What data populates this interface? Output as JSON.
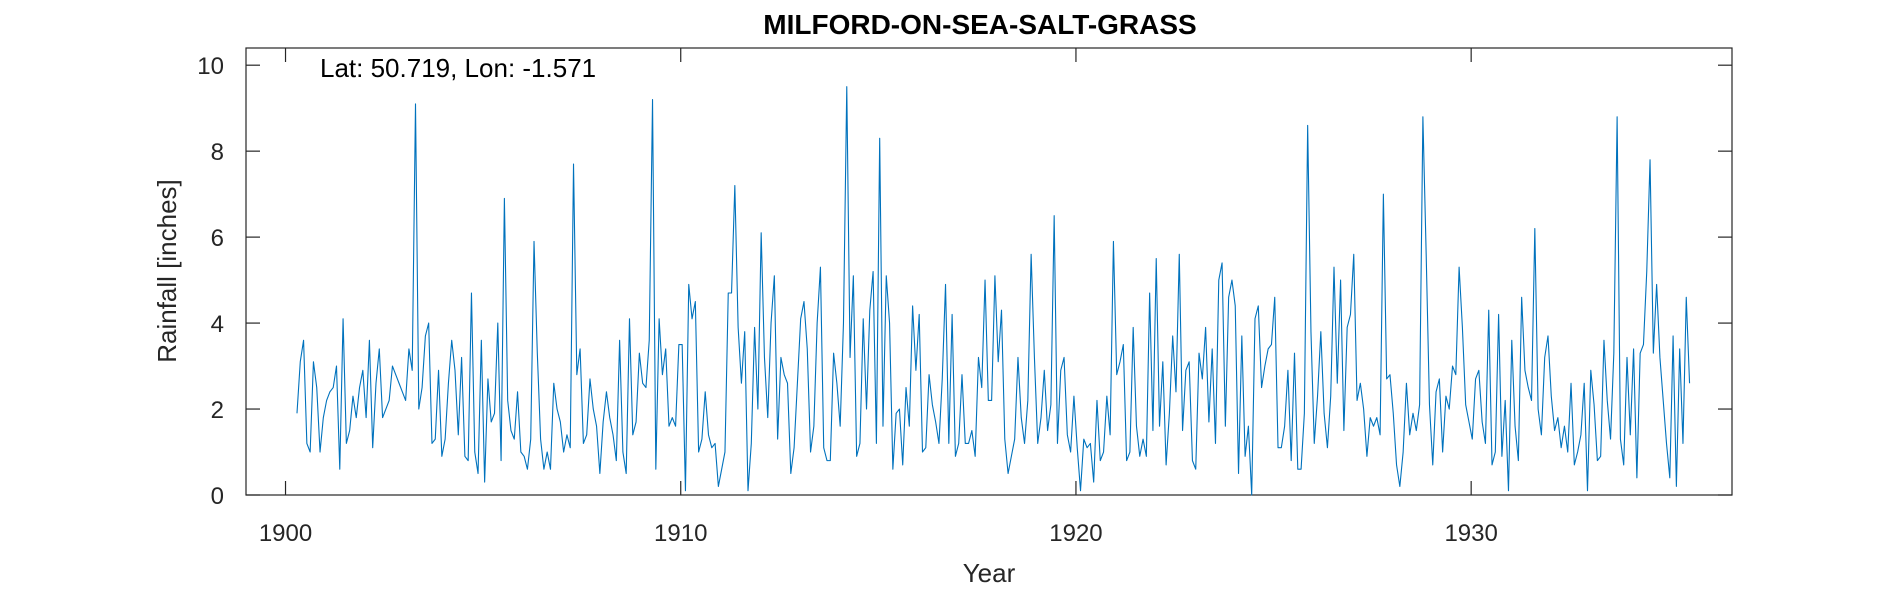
{
  "chart_data": {
    "type": "line",
    "title": "MILFORD-ON-SEA-SALT-GRASS",
    "annotation": "Lat: 50.719, Lon: -1.571",
    "xlabel": "Year",
    "ylabel": "Rainfall [inches]",
    "xlim": [
      1899,
      1936.6
    ],
    "ylim": [
      0,
      10.4
    ],
    "xticks": [
      1900,
      1910,
      1920,
      1930
    ],
    "yticks": [
      0,
      2,
      4,
      6,
      8,
      10
    ],
    "x_start": 1900.29,
    "x_step": 0.0833,
    "line_color": "#0072BD",
    "grid": false,
    "series": [
      {
        "values": [
          1.9,
          3.1,
          3.6,
          1.2,
          1.0,
          3.1,
          2.5,
          1.0,
          1.8,
          2.2,
          2.4,
          2.5,
          3.0,
          0.6,
          4.1,
          1.2,
          1.5,
          2.3,
          1.8,
          2.5,
          2.9,
          1.8,
          3.6,
          1.1,
          2.6,
          3.4,
          1.8,
          2.0,
          2.2,
          3.0,
          2.8,
          2.6,
          2.4,
          2.2,
          3.4,
          2.9,
          9.1,
          2.0,
          2.5,
          3.7,
          4.0,
          1.2,
          1.3,
          2.9,
          0.9,
          1.3,
          2.6,
          3.6,
          2.9,
          1.4,
          3.2,
          0.9,
          0.8,
          4.7,
          1.0,
          0.5,
          3.6,
          0.3,
          2.7,
          1.7,
          1.9,
          4.0,
          0.8,
          6.9,
          2.2,
          1.5,
          1.3,
          2.4,
          1.0,
          0.9,
          0.6,
          1.3,
          5.9,
          3.3,
          1.3,
          0.6,
          1.0,
          0.6,
          2.6,
          2.0,
          1.7,
          1.0,
          1.4,
          1.1,
          7.7,
          2.8,
          3.4,
          1.2,
          1.4,
          2.7,
          2.0,
          1.6,
          0.5,
          1.7,
          2.4,
          1.8,
          1.4,
          0.8,
          3.6,
          1.0,
          0.5,
          4.1,
          1.4,
          1.7,
          3.3,
          2.6,
          2.5,
          3.6,
          9.2,
          0.6,
          4.1,
          2.8,
          3.4,
          1.6,
          1.8,
          1.6,
          3.5,
          3.5,
          0.1,
          4.9,
          4.1,
          4.5,
          1.0,
          1.3,
          2.4,
          1.4,
          1.1,
          1.2,
          0.2,
          0.6,
          1.0,
          4.7,
          4.7,
          7.2,
          3.9,
          2.6,
          3.8,
          0.1,
          1.2,
          3.9,
          2.0,
          6.1,
          3.2,
          1.8,
          4.0,
          5.1,
          1.3,
          3.2,
          2.8,
          2.6,
          0.5,
          1.1,
          2.6,
          4.1,
          4.5,
          3.4,
          1.0,
          1.6,
          4.0,
          5.3,
          1.1,
          0.8,
          0.8,
          3.3,
          2.6,
          1.6,
          4.0,
          9.5,
          3.2,
          5.1,
          0.9,
          1.2,
          4.1,
          2.0,
          4.3,
          5.2,
          1.2,
          8.3,
          1.6,
          5.1,
          4.0,
          0.6,
          1.9,
          2.0,
          0.7,
          2.5,
          1.6,
          4.4,
          2.9,
          4.2,
          1.0,
          1.1,
          2.8,
          2.1,
          1.7,
          1.2,
          2.7,
          4.9,
          1.2,
          4.2,
          0.9,
          1.2,
          2.8,
          1.2,
          1.2,
          1.5,
          0.9,
          3.2,
          2.5,
          5.0,
          2.2,
          2.2,
          5.1,
          3.1,
          4.3,
          1.3,
          0.5,
          0.9,
          1.3,
          3.2,
          1.8,
          1.2,
          2.2,
          5.6,
          3.2,
          1.2,
          1.8,
          2.9,
          1.5,
          2.1,
          6.5,
          1.2,
          2.9,
          3.2,
          1.4,
          1.0,
          2.3,
          1.1,
          0.1,
          1.3,
          1.1,
          1.2,
          0.3,
          2.2,
          0.8,
          1.0,
          2.3,
          1.4,
          5.9,
          2.8,
          3.1,
          3.5,
          0.8,
          1.0,
          3.9,
          1.6,
          0.9,
          1.3,
          0.9,
          4.7,
          1.5,
          5.5,
          1.6,
          3.1,
          0.7,
          1.9,
          3.7,
          2.4,
          5.6,
          1.5,
          2.9,
          3.1,
          0.8,
          0.6,
          3.3,
          2.7,
          3.9,
          1.7,
          3.4,
          1.2,
          5.0,
          5.4,
          1.6,
          4.6,
          5.0,
          4.4,
          0.5,
          3.7,
          0.9,
          1.6,
          0.0,
          4.1,
          4.4,
          2.5,
          3.0,
          3.4,
          3.5,
          4.6,
          1.1,
          1.1,
          1.6,
          2.9,
          0.8,
          3.3,
          0.6,
          0.6,
          1.9,
          8.6,
          3.8,
          1.2,
          2.3,
          3.8,
          1.9,
          1.1,
          2.3,
          5.3,
          2.6,
          5.0,
          1.5,
          3.9,
          4.2,
          5.6,
          2.2,
          2.6,
          2.0,
          0.9,
          1.8,
          1.6,
          1.8,
          1.4,
          7.0,
          2.7,
          2.8,
          1.9,
          0.7,
          0.2,
          1.0,
          2.6,
          1.4,
          1.9,
          1.5,
          2.1,
          8.8,
          5.6,
          2.1,
          0.7,
          2.4,
          2.7,
          1.0,
          2.3,
          2.0,
          3.0,
          2.8,
          5.3,
          3.9,
          2.1,
          1.7,
          1.3,
          2.7,
          2.9,
          1.7,
          1.2,
          4.3,
          0.7,
          1.0,
          4.2,
          0.9,
          2.2,
          0.1,
          3.6,
          1.6,
          0.8,
          4.6,
          2.9,
          2.5,
          2.2,
          6.2,
          2.0,
          1.4,
          3.2,
          3.7,
          2.3,
          1.5,
          1.8,
          1.1,
          1.6,
          1.0,
          2.6,
          0.7,
          1.0,
          1.4,
          2.6,
          0.1,
          2.9,
          2.1,
          0.8,
          0.9,
          3.6,
          2.2,
          1.3,
          3.3,
          8.8,
          1.3,
          0.7,
          3.2,
          1.4,
          3.4,
          0.4,
          3.3,
          3.5,
          5.2,
          7.8,
          3.3,
          4.9,
          3.2,
          2.2,
          1.2,
          0.4,
          3.7,
          0.2,
          3.4,
          1.2,
          4.6,
          2.6
        ]
      }
    ]
  }
}
